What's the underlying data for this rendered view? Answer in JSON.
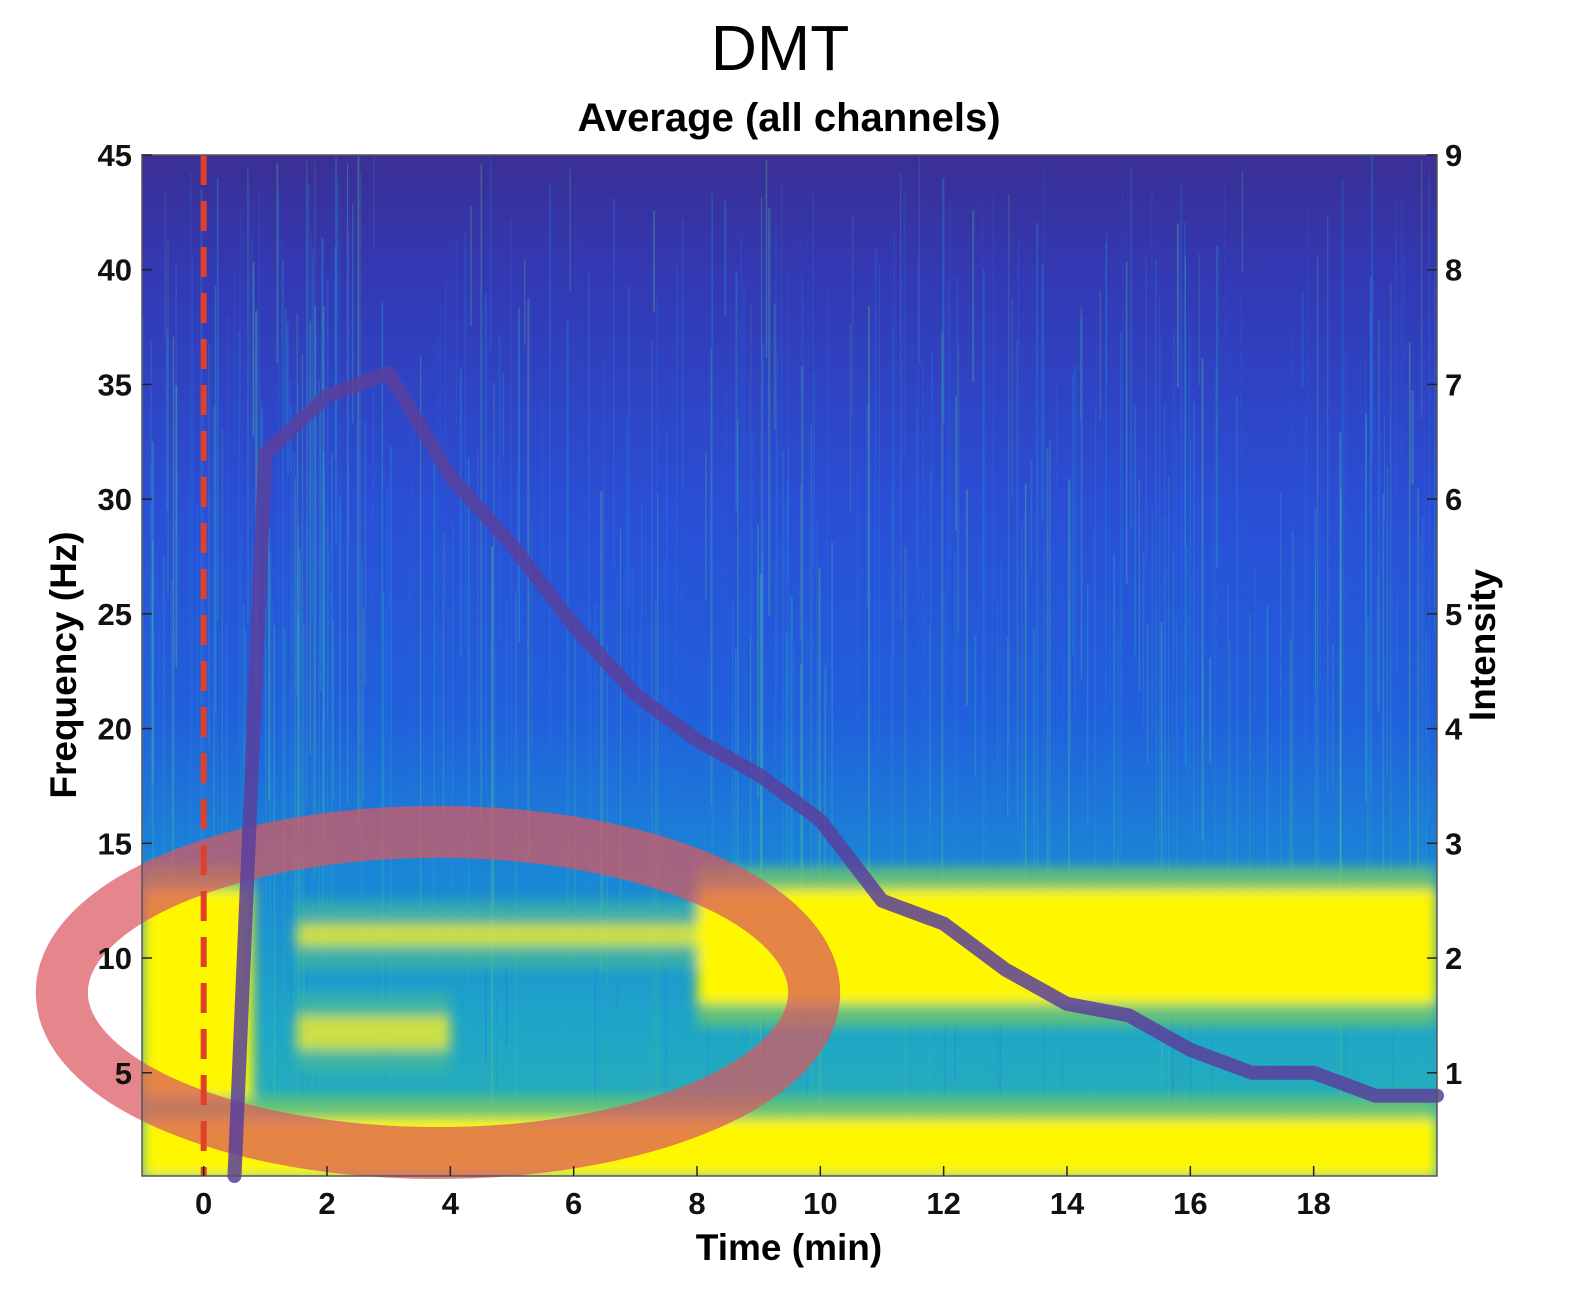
{
  "chart_data": {
    "type": "heatmap",
    "title": "DMT",
    "subtitle": "Average (all channels)",
    "xlabel": "Time (min)",
    "ylabel": "Frequency (Hz)",
    "y2label": "Intensity",
    "xlim": [
      -1,
      20
    ],
    "ylim": [
      0.5,
      45
    ],
    "y2lim": [
      0.1,
      9
    ],
    "x_ticks": [
      "0",
      "2",
      "4",
      "6",
      "8",
      "10",
      "12",
      "14",
      "16",
      "18"
    ],
    "y_ticks": [
      "5",
      "10",
      "15",
      "20",
      "25",
      "30",
      "35",
      "40",
      "45"
    ],
    "y2_ticks": [
      "1",
      "2",
      "3",
      "4",
      "5",
      "6",
      "7",
      "8",
      "9"
    ],
    "grid": false,
    "colormap": [
      "#3b2b8f",
      "#2a4fd6",
      "#1a7fe0",
      "#20b3c6",
      "#57c78b",
      "#b9c83a",
      "#fff700"
    ],
    "spectrogram_bands": [
      {
        "t_start": -1,
        "t_end": 0.8,
        "f_low": 0.5,
        "f_high": 13,
        "level": "high"
      },
      {
        "t_start": 1.5,
        "t_end": 8,
        "f_low": 10.5,
        "f_high": 11.5,
        "level": "medium-high"
      },
      {
        "t_start": 1.5,
        "t_end": 4,
        "f_low": 6,
        "f_high": 7.5,
        "level": "medium-high"
      },
      {
        "t_start": 8,
        "t_end": 20,
        "f_low": 8,
        "f_high": 13,
        "level": "high"
      },
      {
        "t_start": -1,
        "t_end": 20,
        "f_low": 0.5,
        "f_high": 3,
        "level": "high"
      }
    ],
    "intensity_series": {
      "x": [
        0.5,
        1,
        2,
        3,
        4,
        5,
        6,
        7,
        8,
        9,
        10,
        11,
        12,
        13,
        14,
        15,
        16,
        17,
        18,
        19,
        20
      ],
      "y": [
        0.1,
        6.4,
        6.9,
        7.1,
        6.2,
        5.6,
        4.9,
        4.3,
        3.9,
        3.6,
        3.2,
        2.5,
        2.3,
        1.9,
        1.6,
        1.5,
        1.2,
        1.0,
        1.0,
        0.8,
        0.8
      ],
      "color": "#5a3f9e"
    },
    "onset_marker": {
      "x": 0,
      "color": "#e0402a",
      "style": "dashed"
    },
    "highlight_ellipse": {
      "cx": 3.8,
      "cy": 8.5,
      "rx": 6.1,
      "ry": 7,
      "color": "#d9575f"
    }
  }
}
